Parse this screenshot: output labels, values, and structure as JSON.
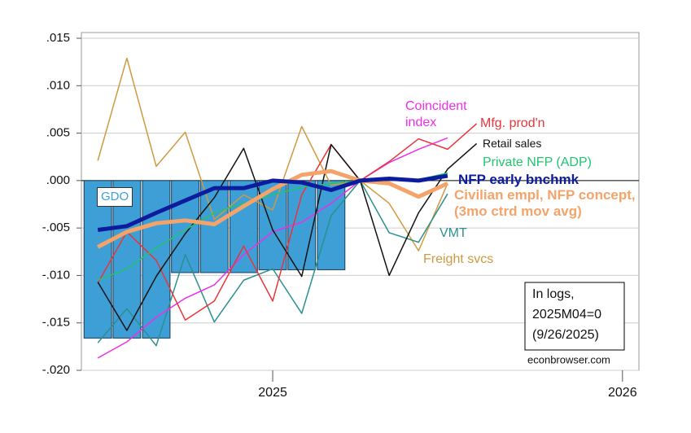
{
  "chart_data": {
    "type": "line",
    "x": [
      2024.5,
      2024.583,
      2024.667,
      2024.75,
      2024.833,
      2024.917,
      2025,
      2025.083,
      2025.167,
      2025.25,
      2025.333,
      2025.417,
      2025.5,
      2025.583
    ],
    "xlim": [
      2024.453,
      2026.047
    ],
    "xticks": [
      2025,
      2026
    ],
    "ylim": [
      -0.02,
      0.015
    ],
    "yticks": [
      {
        "value": -0.02,
        "label": "-.020"
      },
      {
        "value": -0.015,
        "label": "-.015"
      },
      {
        "value": -0.01,
        "label": "-.010"
      },
      {
        "value": -0.005,
        "label": "-.005"
      },
      {
        "value": 0,
        "label": ".000"
      },
      {
        "value": 0.005,
        "label": ".005"
      },
      {
        "value": 0.01,
        "label": ".010"
      },
      {
        "value": 0.015,
        "label": ".015"
      }
    ],
    "grid": true,
    "series": [
      {
        "name": "GDO",
        "type": "bar",
        "color": "#3d9fd5",
        "values": [
          -0.0166,
          -0.0166,
          -0.0166,
          -0.0097,
          -0.0097,
          -0.0097,
          -0.0094,
          -0.0094,
          -0.0094,
          null,
          null,
          null,
          null,
          null
        ]
      },
      {
        "name": "Freight svcs",
        "color": "#cf9a3f",
        "linewidth": 1.5,
        "values": [
          0.0021,
          0.0129,
          0.0015,
          0.0051,
          -0.0041,
          -0.0015,
          -0.0031,
          0.0057,
          -0.0005,
          0,
          -0.0024,
          -0.0074,
          -0.0003,
          null
        ]
      },
      {
        "name": "VMT",
        "color": "#2a908f",
        "linewidth": 1.5,
        "values": [
          -0.0171,
          -0.0135,
          -0.0174,
          -0.0078,
          -0.0149,
          -0.0105,
          -0.0093,
          -0.014,
          -0.0037,
          0,
          -0.0055,
          -0.0065,
          -0.0014,
          null
        ]
      },
      {
        "name": "Coincident index",
        "color": "#ee2ee8",
        "linewidth": 1.5,
        "values": [
          -0.0187,
          -0.017,
          -0.0144,
          -0.0124,
          -0.011,
          -0.0078,
          -0.0054,
          -0.0044,
          -0.0024,
          0,
          0.0019,
          0.0033,
          0.0045,
          null
        ]
      },
      {
        "name": "Mfg. prod'n",
        "color": "#e8353a",
        "linewidth": 1.5,
        "values": [
          -0.0108,
          -0.0054,
          -0.0084,
          -0.0147,
          -0.0127,
          -0.0069,
          -0.0127,
          -0.0015,
          0.0038,
          0,
          0.002,
          0.0044,
          0.0033,
          0.006
        ]
      },
      {
        "name": "Retail sales",
        "color": "#111111",
        "linewidth": 1.5,
        "values": [
          -0.0107,
          -0.0158,
          -0.0101,
          -0.0056,
          -0.0018,
          0.0034,
          -0.0052,
          -0.0101,
          0.0038,
          0,
          -0.01,
          -0.0034,
          0.0012,
          0.0039
        ]
      },
      {
        "name": "Private NFP (ADP)",
        "color": "#22c46f",
        "linewidth": 1.5,
        "values": [
          -0.0105,
          -0.0093,
          -0.0071,
          -0.0052,
          -0.0034,
          -0.0024,
          -0.0015,
          -0.0007,
          -0.0003,
          0,
          0.0002,
          0.0001,
          0.0008,
          null
        ]
      },
      {
        "name": "Civilian empl, NFP concept, (3mo ctrd mov avg)",
        "color": "#f4a46a",
        "linewidth": 5,
        "values": [
          -0.007,
          -0.0054,
          -0.0045,
          -0.0042,
          -0.0046,
          -0.0027,
          -0.0009,
          0.0006,
          0.001,
          0,
          -0.0003,
          -0.0017,
          -0.0003,
          null
        ]
      },
      {
        "name": "NFP early bnchmk",
        "color": "#0c1c9e",
        "linewidth": 5,
        "values": [
          -0.0052,
          -0.0048,
          -0.0034,
          -0.0021,
          -0.0008,
          -0.0008,
          0,
          -0.0002,
          -0.001,
          0,
          0.0002,
          0,
          0.0005,
          null
        ]
      }
    ],
    "annotations": [
      "In logs,",
      "2025M04=0",
      "(9/26/2025)",
      "econbrowser.com"
    ]
  }
}
